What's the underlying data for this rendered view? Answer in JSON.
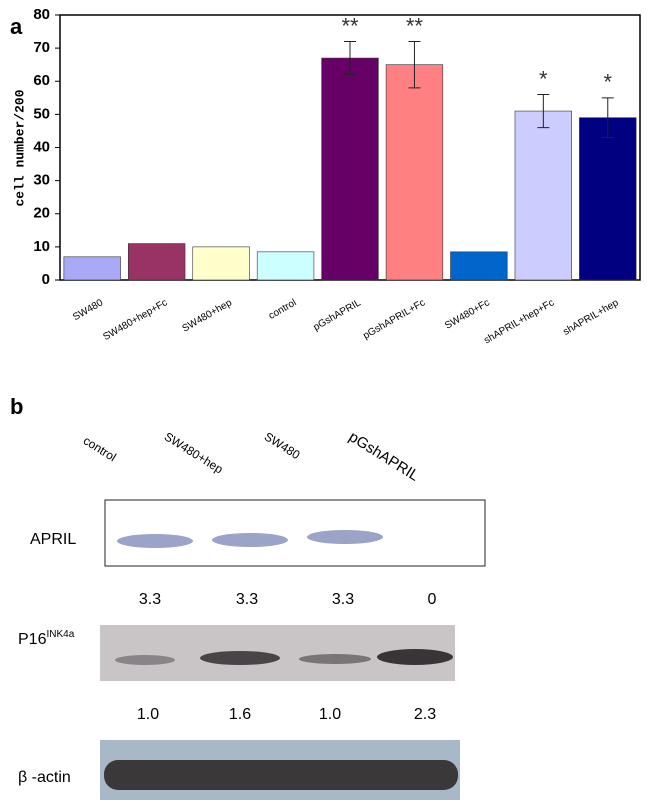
{
  "panel_labels": [
    "a",
    "b"
  ],
  "chart_data": {
    "type": "bar",
    "y_label": "cell number/200",
    "categories": [
      "SW480",
      "SW480+hep+Fc",
      "SW480+hep",
      "control",
      "pGshAPRIL",
      "pGshAPRIL+Fc",
      "SW480+Fc",
      "shAPRIL+hep+Fc",
      "shAPRIL+hep"
    ],
    "values": [
      7,
      11,
      10,
      8.5,
      67,
      65,
      8.5,
      51,
      49
    ],
    "errors": [
      null,
      null,
      null,
      null,
      5,
      7,
      null,
      5,
      6
    ],
    "significance": [
      null,
      null,
      null,
      null,
      "**",
      "**",
      null,
      "*",
      "*"
    ],
    "colors": [
      "#a9a9f5",
      "#993366",
      "#ffffcc",
      "#ccffff",
      "#660066",
      "#ff8080",
      "#0066cc",
      "#ccccff",
      "#000080"
    ],
    "ylim": [
      0,
      80
    ],
    "yticks": [
      0,
      10,
      20,
      30,
      40,
      50,
      60,
      70,
      80
    ],
    "grid": false
  },
  "blot": {
    "columns": [
      "control",
      "SW480+hep",
      "SW480",
      "pGshAPRIL"
    ],
    "rows": [
      {
        "label": "APRIL",
        "values": [
          "3.3",
          "3.3",
          "3.3",
          "0"
        ]
      },
      {
        "label": "P16",
        "superscript": "INK4a",
        "values": [
          "1.0",
          "1.6",
          "1.0",
          "2.3"
        ]
      },
      {
        "label": "β -actin"
      }
    ]
  }
}
